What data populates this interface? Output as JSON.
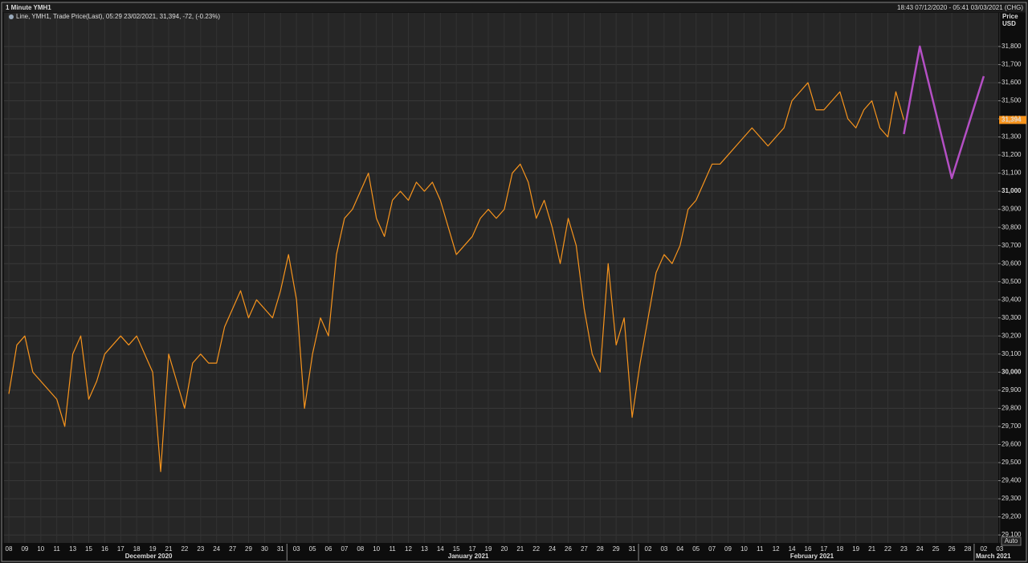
{
  "header": {
    "title": "1 Minute YMH1",
    "range": "18:43 07/12/2020 - 05:41 03/03/2021 (CHG)"
  },
  "legend_info": ", 05:29 23/02/2021, 31,394, ",
  "legend_change": "-72, (-0.23%)",
  "axis_title": "Price",
  "axis_unit": "USD",
  "scale_mode": "Auto",
  "current_price": {
    "value": 31394,
    "label": "31,394"
  },
  "chart_data": {
    "type": "line",
    "categories": [
      "08",
      null,
      "09",
      null,
      "10",
      null,
      "11",
      null,
      "13",
      null,
      "15",
      null,
      "16",
      null,
      "17",
      null,
      "18",
      null,
      "19",
      null,
      "21",
      null,
      "22",
      null,
      "23",
      null,
      "24",
      null,
      "27",
      null,
      "29",
      null,
      "30",
      null,
      "31",
      null,
      "03",
      null,
      "05",
      null,
      "06",
      null,
      "07",
      null,
      "08",
      null,
      "10",
      null,
      "11",
      null,
      "12",
      null,
      "13",
      null,
      "14",
      null,
      "15",
      null,
      "17",
      null,
      "19",
      null,
      "20",
      null,
      "21",
      null,
      "22",
      null,
      "24",
      null,
      "26",
      null,
      "27",
      null,
      "28",
      null,
      "29",
      null,
      "31",
      null,
      "02",
      null,
      "03",
      null,
      "04",
      null,
      "05",
      null,
      "07",
      null,
      "09",
      null,
      "10",
      null,
      "11",
      null,
      "12",
      null,
      "14",
      null,
      "16",
      null,
      "17",
      null,
      "18",
      null,
      "19",
      null,
      "21",
      null,
      "22",
      null,
      "23",
      null,
      "24",
      null,
      "25",
      null,
      "26",
      null,
      "28",
      null,
      "02",
      null,
      "03",
      null
    ],
    "months": [
      "December 2020",
      "January 2021",
      "February 2021",
      "March 2021"
    ],
    "series": [
      {
        "name": "Line, YMH1, Trade Price(Last)",
        "color": "#f7941d",
        "values": [
          29880,
          30150,
          30200,
          30000,
          29950,
          29900,
          29850,
          29700,
          30100,
          30200,
          29850,
          29950,
          30100,
          30150,
          30200,
          30150,
          30200,
          30100,
          30000,
          29450,
          30100,
          29950,
          29800,
          30050,
          30100,
          30050,
          30050,
          30250,
          30350,
          30450,
          30300,
          30400,
          30350,
          30300,
          30450,
          30650,
          30400,
          29800,
          30100,
          30300,
          30200,
          30650,
          30850,
          30900,
          31000,
          31100,
          30850,
          30750,
          30950,
          31000,
          30950,
          31050,
          31000,
          31050,
          30950,
          30800,
          30650,
          30700,
          30750,
          30850,
          30900,
          30850,
          30900,
          31100,
          31150,
          31050,
          30850,
          30950,
          30800,
          30600,
          30850,
          30700,
          30350,
          30100,
          30000,
          30600,
          30150,
          30300,
          29750,
          30050,
          30300,
          30550,
          30650,
          30600,
          30700,
          30900,
          30950,
          31050,
          31150,
          31150,
          31200,
          31250,
          31300,
          31350,
          31300,
          31250,
          31300,
          31350,
          31500,
          31550,
          31600,
          31450,
          31450,
          31500,
          31550,
          31400,
          31350,
          31450,
          31500,
          31350,
          31300,
          31550,
          31394,
          null,
          null,
          null,
          null,
          null,
          null,
          null,
          null,
          null,
          null,
          null,
          null,
          null
        ]
      },
      {
        "color": "#b44fc4",
        "values": [
          null,
          null,
          null,
          null,
          null,
          null,
          null,
          null,
          null,
          null,
          null,
          null,
          null,
          null,
          null,
          null,
          null,
          null,
          null,
          null,
          null,
          null,
          null,
          null,
          null,
          null,
          null,
          null,
          null,
          null,
          null,
          null,
          null,
          null,
          null,
          null,
          null,
          null,
          null,
          null,
          null,
          null,
          null,
          null,
          null,
          null,
          null,
          null,
          null,
          null,
          null,
          null,
          null,
          null,
          null,
          null,
          null,
          null,
          null,
          null,
          null,
          null,
          null,
          null,
          null,
          null,
          null,
          null,
          null,
          null,
          null,
          null,
          null,
          null,
          null,
          null,
          null,
          null,
          null,
          null,
          null,
          null,
          null,
          null,
          null,
          null,
          null,
          null,
          null,
          null,
          null,
          null,
          null,
          null,
          null,
          null,
          null,
          null,
          null,
          null,
          null,
          null,
          null,
          null,
          null,
          null,
          null,
          null,
          null,
          null,
          null,
          null,
          31316,
          31558,
          31800,
          31618,
          31436,
          31254,
          31072,
          31213,
          31354,
          31495,
          31636,
          null,
          null,
          null
        ]
      }
    ],
    "ylim": [
      29056,
      31986
    ],
    "yticks": [
      {
        "value": 29100,
        "label": "29,100"
      },
      {
        "value": 29200,
        "label": "29,200"
      },
      {
        "value": 29300,
        "label": "29,300"
      },
      {
        "value": 29400,
        "label": "29,400"
      },
      {
        "value": 29500,
        "label": "29,500"
      },
      {
        "value": 29600,
        "label": "29,600"
      },
      {
        "value": 29700,
        "label": "29,700"
      },
      {
        "value": 29800,
        "label": "29,800"
      },
      {
        "value": 29900,
        "label": "29,900"
      },
      {
        "value": 30000,
        "label": "30,000"
      },
      {
        "value": 30100,
        "label": "30,100"
      },
      {
        "value": 30200,
        "label": "30,200"
      },
      {
        "value": 30300,
        "label": "30,300"
      },
      {
        "value": 30400,
        "label": "30,400"
      },
      {
        "value": 30500,
        "label": "30,500"
      },
      {
        "value": 30600,
        "label": "30,600"
      },
      {
        "value": 30700,
        "label": "30,700"
      },
      {
        "value": 30800,
        "label": "30,800"
      },
      {
        "value": 30900,
        "label": "30,900"
      },
      {
        "value": 31000,
        "label": "31,000"
      },
      {
        "value": 31100,
        "label": "31,100"
      },
      {
        "value": 31200,
        "label": "31,200"
      },
      {
        "value": 31300,
        "label": "31,300"
      },
      {
        "value": 31400,
        "label": "31,400"
      },
      {
        "value": 31500,
        "label": "31,500"
      },
      {
        "value": 31600,
        "label": "31,600"
      },
      {
        "value": 31700,
        "label": "31,700"
      },
      {
        "value": 31800,
        "label": "31,800"
      }
    ],
    "grid": true
  }
}
